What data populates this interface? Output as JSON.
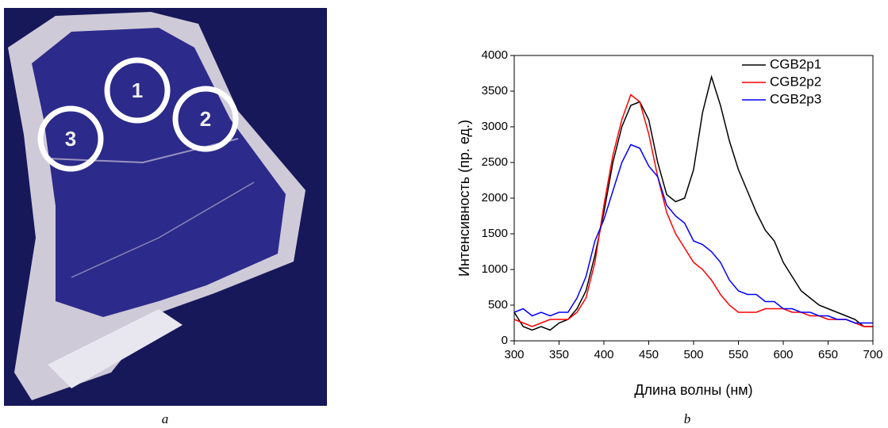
{
  "photo": {
    "markers": [
      "1",
      "2",
      "3"
    ]
  },
  "captions": [
    "a",
    "b"
  ],
  "chart_data": {
    "type": "line",
    "x_label": "Длина волны (нм)",
    "y_label": "Интенсивность (пр. ед.)",
    "x": [
      300,
      310,
      320,
      330,
      340,
      350,
      360,
      370,
      380,
      390,
      400,
      410,
      420,
      430,
      440,
      450,
      460,
      470,
      480,
      490,
      500,
      510,
      520,
      530,
      540,
      550,
      560,
      570,
      580,
      590,
      600,
      610,
      620,
      630,
      640,
      650,
      660,
      670,
      680,
      690,
      700
    ],
    "series": [
      {
        "name": "CGB2p1",
        "color": "#000000",
        "values": [
          400,
          200,
          150,
          200,
          150,
          250,
          300,
          450,
          700,
          1200,
          1800,
          2500,
          3000,
          3300,
          3350,
          3100,
          2500,
          2050,
          1950,
          2000,
          2400,
          3200,
          3700,
          3300,
          2800,
          2400,
          2100,
          1800,
          1550,
          1400,
          1100,
          900,
          700,
          600,
          500,
          450,
          400,
          350,
          300,
          200,
          200
        ]
      },
      {
        "name": "CGB2p2",
        "color": "#ff0000",
        "values": [
          300,
          250,
          200,
          250,
          300,
          300,
          300,
          400,
          600,
          1100,
          1900,
          2600,
          3100,
          3450,
          3350,
          2900,
          2300,
          1800,
          1500,
          1300,
          1100,
          1000,
          850,
          650,
          500,
          400,
          400,
          400,
          450,
          450,
          450,
          400,
          400,
          350,
          350,
          300,
          300,
          300,
          250,
          200,
          200
        ]
      },
      {
        "name": "CGB2p3",
        "color": "#0000ff",
        "values": [
          400,
          450,
          350,
          400,
          350,
          400,
          400,
          600,
          900,
          1400,
          1700,
          2100,
          2500,
          2750,
          2700,
          2450,
          2300,
          1900,
          1750,
          1650,
          1400,
          1350,
          1250,
          1100,
          850,
          700,
          650,
          650,
          550,
          550,
          450,
          450,
          400,
          400,
          350,
          350,
          300,
          300,
          250,
          250,
          250
        ]
      }
    ],
    "xlim": [
      300,
      700
    ],
    "xticks": [
      300,
      350,
      400,
      450,
      500,
      550,
      600,
      650,
      700
    ],
    "ylim": [
      0,
      4000
    ],
    "yticks": [
      0,
      500,
      1000,
      1500,
      2000,
      2500,
      3000,
      3500,
      4000
    ],
    "legend": "upper right"
  }
}
